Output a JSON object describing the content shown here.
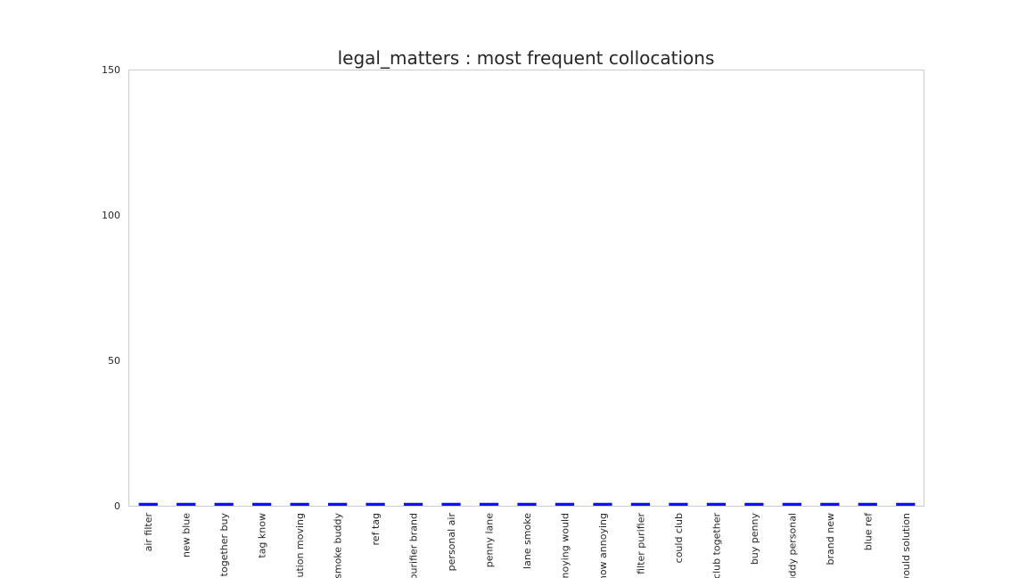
{
  "chart_data": {
    "type": "bar",
    "title": "legal_matters : most frequent collocations",
    "xlabel": "",
    "ylabel": "",
    "ylim": [
      0,
      150
    ],
    "yticks": [
      0,
      50,
      100,
      150
    ],
    "grid": false,
    "bar_color": "#1010ff",
    "frame_color": "#cccccc",
    "categories": [
      "air filter",
      "new blue",
      "together buy",
      "tag know",
      "solution moving",
      "smoke buddy",
      "ref tag",
      "purifier brand",
      "personal air",
      "penny lane",
      "lane smoke",
      "annoying would",
      "know annoying",
      "filter purifier",
      "could club",
      "club together",
      "buy penny",
      "buddy personal",
      "brand new",
      "blue ref",
      "would solution"
    ],
    "values": [
      1,
      1,
      1,
      1,
      1,
      1,
      1,
      1,
      1,
      1,
      1,
      1,
      1,
      1,
      1,
      1,
      1,
      1,
      1,
      1,
      1
    ]
  }
}
